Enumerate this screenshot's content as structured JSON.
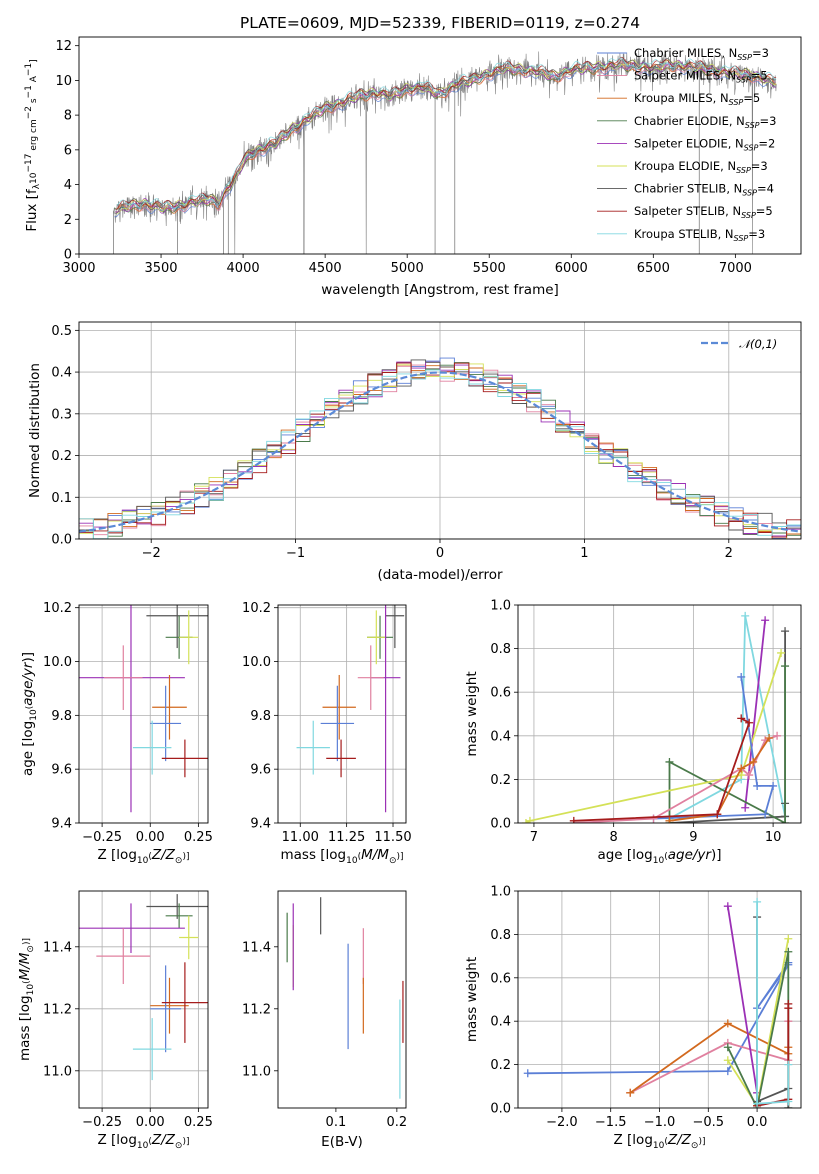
{
  "page": {
    "title": "PLATE=0609, MJD=52339, FIBERID=0119, z=0.274"
  },
  "colors": {
    "Chabrier MILES": "#5b7fd6",
    "Salpeter MILES": "#e0809f",
    "Kroupa MILES": "#d2691e",
    "Chabrier ELODIE": "#4a7a4a",
    "Salpeter ELODIE": "#9b30b5",
    "Kroupa ELODIE": "#d4e157",
    "Chabrier STELIB": "#555555",
    "Salpeter STELIB": "#a51c1c",
    "Kroupa STELIB": "#80d8e0"
  },
  "chart_data": [
    {
      "id": "spectrum",
      "type": "line",
      "title": "PLATE=0609, MJD=52339, FIBERID=0119, z=0.274",
      "xlabel": "wavelength [Angstrom, rest frame]",
      "ylabel": "Flux [f_λ 10^-17 erg cm^-2 s^-1 A^-1]",
      "xlim": [
        3000,
        7400
      ],
      "ylim": [
        0,
        12.5
      ],
      "xticks": [
        3000,
        3500,
        4000,
        4500,
        5000,
        5500,
        6000,
        6500,
        7000
      ],
      "yticks": [
        0,
        2,
        4,
        6,
        8,
        10,
        12
      ],
      "grid": false,
      "legend_position": "right",
      "legend": [
        {
          "name": "Chabrier MILES",
          "label": "Chabrier MILES, N",
          "sub": "SSP",
          "tail": "=3"
        },
        {
          "name": "Salpeter MILES",
          "label": "Salpeter MILES, N",
          "sub": "SSP",
          "tail": "=5"
        },
        {
          "name": "Kroupa MILES",
          "label": "Kroupa MILES, N",
          "sub": "SSP",
          "tail": "=5"
        },
        {
          "name": "Chabrier ELODIE",
          "label": "Chabrier ELODIE, N",
          "sub": "SSP",
          "tail": "=3"
        },
        {
          "name": "Salpeter ELODIE",
          "label": "Salpeter ELODIE, N",
          "sub": "SSP",
          "tail": "=2"
        },
        {
          "name": "Kroupa ELODIE",
          "label": "Kroupa ELODIE, N",
          "sub": "SSP",
          "tail": "=3"
        },
        {
          "name": "Chabrier STELIB",
          "label": "Chabrier STELIB, N",
          "sub": "SSP",
          "tail": "=4"
        },
        {
          "name": "Salpeter STELIB",
          "label": "Salpeter STELIB, N",
          "sub": "SSP",
          "tail": "=5"
        },
        {
          "name": "Kroupa STELIB",
          "label": "Kroupa STELIB, N",
          "sub": "SSP",
          "tail": "=3"
        }
      ],
      "envelope": [
        [
          3210,
          2.5
        ],
        [
          3300,
          2.75
        ],
        [
          3400,
          2.9
        ],
        [
          3500,
          2.65
        ],
        [
          3600,
          2.75
        ],
        [
          3700,
          3.0
        ],
        [
          3800,
          3.15
        ],
        [
          3850,
          2.9
        ],
        [
          3900,
          3.7
        ],
        [
          3950,
          4.3
        ],
        [
          4000,
          5.3
        ],
        [
          4050,
          5.8
        ],
        [
          4100,
          6.0
        ],
        [
          4200,
          6.4
        ],
        [
          4300,
          7.2
        ],
        [
          4400,
          7.8
        ],
        [
          4500,
          8.4
        ],
        [
          4600,
          8.7
        ],
        [
          4700,
          9.1
        ],
        [
          4800,
          9.3
        ],
        [
          4900,
          9.1
        ],
        [
          5000,
          9.5
        ],
        [
          5100,
          9.6
        ],
        [
          5200,
          9.2
        ],
        [
          5300,
          9.8
        ],
        [
          5400,
          10.0
        ],
        [
          5500,
          10.4
        ],
        [
          5600,
          10.7
        ],
        [
          5700,
          10.6
        ],
        [
          5800,
          10.5
        ],
        [
          5900,
          10.2
        ],
        [
          6000,
          10.6
        ],
        [
          6100,
          10.7
        ],
        [
          6200,
          10.8
        ],
        [
          6300,
          10.9
        ],
        [
          6400,
          10.8
        ],
        [
          6500,
          10.7
        ],
        [
          6600,
          10.9
        ],
        [
          6700,
          10.8
        ],
        [
          6800,
          10.7
        ],
        [
          6900,
          10.5
        ],
        [
          7000,
          10.4
        ],
        [
          7100,
          10.3
        ],
        [
          7200,
          10.0
        ],
        [
          7250,
          9.9
        ]
      ],
      "data_dips": [
        [
          3210,
          0
        ],
        [
          3600,
          0
        ],
        [
          3880,
          0
        ],
        [
          3910,
          0
        ],
        [
          4370,
          0
        ],
        [
          5170,
          0
        ],
        [
          5290,
          0
        ],
        [
          6780,
          0
        ]
      ]
    },
    {
      "id": "residuals",
      "type": "line",
      "xlabel": "(data-model)/error",
      "ylabel": "Normed distribution",
      "xlim": [
        -2.5,
        2.5
      ],
      "ylim": [
        0,
        0.52
      ],
      "xticks": [
        -2,
        -1,
        0,
        1,
        2
      ],
      "yticks": [
        0.0,
        0.1,
        0.2,
        0.3,
        0.4,
        0.5
      ],
      "grid": true,
      "legend_position": "top-right",
      "reference": {
        "name": "𝒩(0,1)",
        "mu": 0,
        "sigma": 1,
        "color": "#5b8ad6"
      },
      "hist_bin_width": 0.1,
      "hist_bins_from": -2.5,
      "hist_bins_to": 2.5
    },
    {
      "id": "age_vs_Z",
      "type": "scatter",
      "xlabel": "Z [log10(Z/Z_⊙)]",
      "ylabel": "age [log10(age/yr)]",
      "xlim": [
        -0.37,
        0.3
      ],
      "ylim": [
        9.4,
        10.21
      ],
      "xticks": [
        -0.25,
        0.0,
        0.25
      ],
      "yticks": [
        9.4,
        9.6,
        9.8,
        10.0,
        10.2
      ],
      "grid": true,
      "points": [
        {
          "name": "Chabrier STELIB",
          "x": 0.14,
          "xerr": 0.16,
          "y": 10.17,
          "yerr": 0.12
        },
        {
          "name": "Chabrier ELODIE",
          "x": 0.15,
          "xerr": 0.07,
          "y": 10.09,
          "yerr": 0.08
        },
        {
          "name": "Kroupa ELODIE",
          "x": 0.2,
          "xerr": 0.05,
          "y": 10.09,
          "yerr": 0.1
        },
        {
          "name": "Salpeter ELODIE",
          "x": -0.1,
          "xerr": 0.28,
          "y": 9.94,
          "yerr": 0.5
        },
        {
          "name": "Salpeter MILES",
          "x": -0.14,
          "xerr": 0.1,
          "y": 9.94,
          "yerr": 0.12
        },
        {
          "name": "Kroupa MILES",
          "x": 0.1,
          "xerr": 0.09,
          "y": 9.83,
          "yerr": 0.12
        },
        {
          "name": "Chabrier MILES",
          "x": 0.08,
          "xerr": 0.08,
          "y": 9.77,
          "yerr": 0.14
        },
        {
          "name": "Kroupa STELIB",
          "x": 0.01,
          "xerr": 0.1,
          "y": 9.68,
          "yerr": 0.1
        },
        {
          "name": "Salpeter STELIB",
          "x": 0.18,
          "xerr": 0.12,
          "y": 9.64,
          "yerr": 0.07
        }
      ]
    },
    {
      "id": "age_vs_mass",
      "type": "scatter",
      "xlabel": "mass [log10(M/M_⊙)]",
      "ylabel": "",
      "xlim": [
        10.88,
        11.57
      ],
      "ylim": [
        9.4,
        10.21
      ],
      "xticks": [
        11.0,
        11.25,
        11.5
      ],
      "yticks": [
        9.4,
        9.6,
        9.8,
        10.0,
        10.2
      ],
      "grid": true,
      "points": [
        {
          "name": "Chabrier STELIB",
          "x": 11.51,
          "xerr": 0.05,
          "y": 10.17,
          "yerr": 0.12
        },
        {
          "name": "Chabrier ELODIE",
          "x": 11.43,
          "xerr": 0.07,
          "y": 10.09,
          "yerr": 0.08
        },
        {
          "name": "Kroupa ELODIE",
          "x": 11.41,
          "xerr": 0.05,
          "y": 10.09,
          "yerr": 0.1
        },
        {
          "name": "Salpeter ELODIE",
          "x": 11.46,
          "xerr": 0.08,
          "y": 9.94,
          "yerr": 0.5
        },
        {
          "name": "Salpeter MILES",
          "x": 11.38,
          "xerr": 0.07,
          "y": 9.94,
          "yerr": 0.12
        },
        {
          "name": "Kroupa MILES",
          "x": 11.21,
          "xerr": 0.09,
          "y": 9.83,
          "yerr": 0.12
        },
        {
          "name": "Chabrier MILES",
          "x": 11.2,
          "xerr": 0.09,
          "y": 9.77,
          "yerr": 0.14
        },
        {
          "name": "Kroupa STELIB",
          "x": 11.07,
          "xerr": 0.09,
          "y": 9.68,
          "yerr": 0.1
        },
        {
          "name": "Salpeter STELIB",
          "x": 11.22,
          "xerr": 0.08,
          "y": 9.64,
          "yerr": 0.07
        }
      ]
    },
    {
      "id": "weight_vs_age",
      "type": "line",
      "xlabel": "age [log10(age/yr)]",
      "ylabel": "mass weight",
      "xlim": [
        6.8,
        10.35
      ],
      "ylim": [
        0,
        1.0
      ],
      "xticks": [
        7,
        8,
        9,
        10
      ],
      "yticks": [
        0.0,
        0.2,
        0.4,
        0.6,
        0.8,
        1.0
      ],
      "grid": true,
      "series": [
        {
          "name": "Kroupa STELIB",
          "x": [
            10.15,
            9.65,
            9.6,
            8.7
          ],
          "y": [
            0.03,
            0.95,
            0.2,
            0.02
          ]
        },
        {
          "name": "Salpeter ELODIE",
          "x": [
            9.65,
            9.9
          ],
          "y": [
            0.07,
            0.93
          ]
        },
        {
          "name": "Chabrier STELIB",
          "x": [
            10.15,
            10.15,
            10.15,
            8.7
          ],
          "y": [
            0.09,
            0.88,
            0.03,
            0.0
          ]
        },
        {
          "name": "Chabrier ELODIE",
          "x": [
            10.15,
            10.15,
            8.7,
            8.7
          ],
          "y": [
            0.72,
            0.0,
            0.28,
            0.0
          ]
        },
        {
          "name": "Kroupa ELODIE",
          "x": [
            10.1,
            9.6,
            6.95,
            6.9
          ],
          "y": [
            0.78,
            0.22,
            0.01,
            0.0
          ]
        },
        {
          "name": "Chabrier MILES",
          "x": [
            9.6,
            9.8,
            10.0,
            9.9,
            8.5
          ],
          "y": [
            0.67,
            0.17,
            0.17,
            0.04,
            0.02
          ]
        },
        {
          "name": "Salpeter MILES",
          "x": [
            10.05,
            9.9,
            9.7,
            9.6,
            8.5,
            7.5
          ],
          "y": [
            0.4,
            0.38,
            0.22,
            0.25,
            0.02,
            0.0
          ]
        },
        {
          "name": "Kroupa MILES",
          "x": [
            9.95,
            9.75,
            9.6,
            9.3,
            8.7
          ],
          "y": [
            0.39,
            0.28,
            0.25,
            0.04,
            0.01
          ]
        },
        {
          "name": "Salpeter STELIB",
          "x": [
            9.6,
            9.7,
            9.3,
            7.5
          ],
          "y": [
            0.48,
            0.46,
            0.04,
            0.01
          ]
        }
      ]
    },
    {
      "id": "mass_vs_Z",
      "type": "scatter",
      "xlabel": "Z [log10(Z/Z_⊙)]",
      "ylabel": "mass [log10(M/M_⊙)]",
      "xlim": [
        -0.37,
        0.3
      ],
      "ylim": [
        10.88,
        11.58
      ],
      "xticks": [
        -0.25,
        0.0,
        0.25
      ],
      "yticks": [
        11.0,
        11.2,
        11.4
      ],
      "grid": true,
      "points": [
        {
          "name": "Chabrier STELIB",
          "x": 0.14,
          "xerr": 0.16,
          "y": 11.53,
          "yerr": 0.04
        },
        {
          "name": "Chabrier ELODIE",
          "x": 0.15,
          "xerr": 0.07,
          "y": 11.5,
          "yerr": 0.04
        },
        {
          "name": "Kroupa ELODIE",
          "x": 0.2,
          "xerr": 0.05,
          "y": 11.43,
          "yerr": 0.07
        },
        {
          "name": "Salpeter ELODIE",
          "x": -0.1,
          "xerr": 0.28,
          "y": 11.46,
          "yerr": 0.08
        },
        {
          "name": "Salpeter MILES",
          "x": -0.14,
          "xerr": 0.14,
          "y": 11.37,
          "yerr": 0.09
        },
        {
          "name": "Kroupa MILES",
          "x": 0.1,
          "xerr": 0.1,
          "y": 11.21,
          "yerr": 0.09
        },
        {
          "name": "Chabrier MILES",
          "x": 0.08,
          "xerr": 0.08,
          "y": 11.2,
          "yerr": 0.14
        },
        {
          "name": "Kroupa STELIB",
          "x": 0.01,
          "xerr": 0.1,
          "y": 11.07,
          "yerr": 0.1
        },
        {
          "name": "Salpeter STELIB",
          "x": 0.18,
          "xerr": 0.12,
          "y": 11.22,
          "yerr": 0.13
        }
      ]
    },
    {
      "id": "mass_vs_EBV",
      "type": "scatter",
      "xlabel": "E(B-V)",
      "ylabel": "",
      "xlim": [
        0.005,
        0.215
      ],
      "ylim": [
        10.88,
        11.58
      ],
      "xticks": [
        0.1,
        0.2
      ],
      "yticks": [
        11.0,
        11.2,
        11.4
      ],
      "grid": false,
      "points": [
        {
          "name": "Chabrier STELIB",
          "x": 0.075,
          "y": 11.5,
          "yerr": 0.06
        },
        {
          "name": "Chabrier ELODIE",
          "x": 0.02,
          "y": 11.43,
          "yerr": 0.08
        },
        {
          "name": "Kroupa ELODIE",
          "x": 0.03,
          "y": 11.37,
          "yerr": 0.1
        },
        {
          "name": "Salpeter ELODIE",
          "x": 0.03,
          "y": 11.4,
          "yerr": 0.14
        },
        {
          "name": "Salpeter MILES",
          "x": 0.145,
          "y": 11.37,
          "yerr": 0.09
        },
        {
          "name": "Kroupa MILES",
          "x": 0.145,
          "y": 11.21,
          "yerr": 0.09
        },
        {
          "name": "Chabrier MILES",
          "x": 0.12,
          "y": 11.24,
          "yerr": 0.17
        },
        {
          "name": "Kroupa STELIB",
          "x": 0.205,
          "y": 11.07,
          "yerr": 0.16
        },
        {
          "name": "Salpeter STELIB",
          "x": 0.21,
          "y": 11.19,
          "yerr": 0.1
        }
      ]
    },
    {
      "id": "weight_vs_Z",
      "type": "line",
      "xlabel": "Z [log10(Z/Z_⊙)]",
      "ylabel": "mass weight",
      "xlim": [
        -2.45,
        0.45
      ],
      "ylim": [
        0,
        1.0
      ],
      "xticks": [
        -2.0,
        -1.5,
        -1.0,
        -0.5,
        0.0
      ],
      "yticks": [
        0.0,
        0.2,
        0.4,
        0.6,
        0.8,
        1.0
      ],
      "grid": true,
      "series": [
        {
          "name": "Chabrier MILES",
          "x": [
            -2.35,
            -0.3,
            0.32,
            0.0,
            0.32
          ],
          "y": [
            0.16,
            0.17,
            0.66,
            0.46,
            0.67
          ]
        },
        {
          "name": "Salpeter MILES",
          "x": [
            -1.3,
            -0.3,
            0.32,
            0.32
          ],
          "y": [
            0.07,
            0.3,
            0.22,
            0.4
          ]
        },
        {
          "name": "Kroupa MILES",
          "x": [
            -1.3,
            -0.3,
            0.32,
            0.32
          ],
          "y": [
            0.07,
            0.39,
            0.25,
            0.28
          ]
        },
        {
          "name": "Salpeter ELODIE",
          "x": [
            -0.3,
            0.0
          ],
          "y": [
            0.93,
            0.07
          ]
        },
        {
          "name": "Kroupa ELODIE",
          "x": [
            -0.3,
            0.0,
            0.32
          ],
          "y": [
            0.22,
            0.01,
            0.78
          ]
        },
        {
          "name": "Chabrier ELODIE",
          "x": [
            -0.3,
            0.0,
            0.32,
            0.32
          ],
          "y": [
            0.28,
            0.0,
            0.72,
            0.0
          ]
        },
        {
          "name": "Chabrier STELIB",
          "x": [
            0.0,
            0.0,
            0.32,
            0.32
          ],
          "y": [
            0.88,
            0.03,
            0.09,
            0.0
          ]
        },
        {
          "name": "Salpeter STELIB",
          "x": [
            0.0,
            0.32,
            0.32,
            0.32
          ],
          "y": [
            0.01,
            0.04,
            0.48,
            0.46
          ]
        },
        {
          "name": "Kroupa STELIB",
          "x": [
            0.0,
            0.0,
            0.32,
            0.32
          ],
          "y": [
            0.95,
            0.02,
            0.03,
            0.2
          ]
        }
      ]
    }
  ]
}
